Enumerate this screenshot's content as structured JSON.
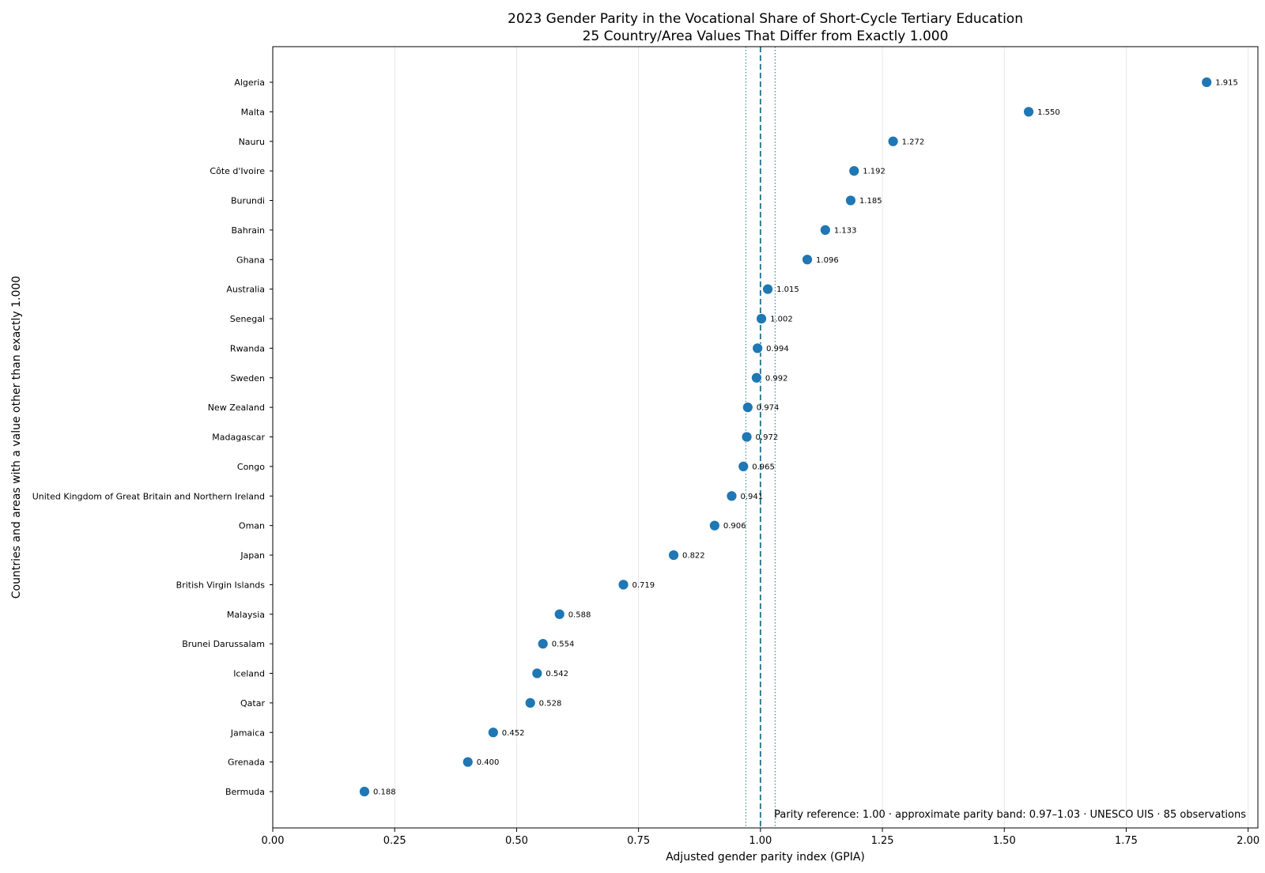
{
  "chart_data": {
    "type": "scatter",
    "title": "2023 Gender Parity in the Vocational Share of Short-Cycle Tertiary Education",
    "subtitle": "25 Country/Area Values That Differ from Exactly 1.000",
    "xlabel": "Adjusted gender parity index (GPIA)",
    "ylabel": "Countries and areas with a value other than exactly 1.000",
    "xlim": [
      0.0,
      2.02
    ],
    "xticks": [
      "0.00",
      "0.25",
      "0.50",
      "0.75",
      "1.00",
      "1.25",
      "1.50",
      "1.75",
      "2.00"
    ],
    "xtick_values": [
      0.0,
      0.25,
      0.5,
      0.75,
      1.0,
      1.25,
      1.5,
      1.75,
      2.0
    ],
    "grid": "vertical",
    "parity_reference": 1.0,
    "parity_band": [
      0.97,
      1.03
    ],
    "annotation": "Parity reference: 1.00 · approximate parity band: 0.97–1.03 · UNESCO UIS · 85 observations",
    "marker_color": "#1f77b4",
    "reference_line_color": "#1f6f8b",
    "points": [
      {
        "label": "Algeria",
        "value": 1.915,
        "value_label": "1.915"
      },
      {
        "label": "Malta",
        "value": 1.55,
        "value_label": "1.550"
      },
      {
        "label": "Nauru",
        "value": 1.272,
        "value_label": "1.272"
      },
      {
        "label": "Côte d'Ivoire",
        "value": 1.192,
        "value_label": "1.192"
      },
      {
        "label": "Burundi",
        "value": 1.185,
        "value_label": "1.185"
      },
      {
        "label": "Bahrain",
        "value": 1.133,
        "value_label": "1.133"
      },
      {
        "label": "Ghana",
        "value": 1.096,
        "value_label": "1.096"
      },
      {
        "label": "Australia",
        "value": 1.015,
        "value_label": "1.015"
      },
      {
        "label": "Senegal",
        "value": 1.002,
        "value_label": "1.002"
      },
      {
        "label": "Rwanda",
        "value": 0.994,
        "value_label": "0.994"
      },
      {
        "label": "Sweden",
        "value": 0.992,
        "value_label": "0.992"
      },
      {
        "label": "New Zealand",
        "value": 0.974,
        "value_label": "0.974"
      },
      {
        "label": "Madagascar",
        "value": 0.972,
        "value_label": "0.972"
      },
      {
        "label": "Congo",
        "value": 0.965,
        "value_label": "0.965"
      },
      {
        "label": "United Kingdom of Great Britain and Northern Ireland",
        "value": 0.941,
        "value_label": "0.941"
      },
      {
        "label": "Oman",
        "value": 0.906,
        "value_label": "0.906"
      },
      {
        "label": "Japan",
        "value": 0.822,
        "value_label": "0.822"
      },
      {
        "label": "British Virgin Islands",
        "value": 0.719,
        "value_label": "0.719"
      },
      {
        "label": "Malaysia",
        "value": 0.588,
        "value_label": "0.588"
      },
      {
        "label": "Brunei Darussalam",
        "value": 0.554,
        "value_label": "0.554"
      },
      {
        "label": "Iceland",
        "value": 0.542,
        "value_label": "0.542"
      },
      {
        "label": "Qatar",
        "value": 0.528,
        "value_label": "0.528"
      },
      {
        "label": "Jamaica",
        "value": 0.452,
        "value_label": "0.452"
      },
      {
        "label": "Grenada",
        "value": 0.4,
        "value_label": "0.400"
      },
      {
        "label": "Bermuda",
        "value": 0.188,
        "value_label": "0.188"
      }
    ]
  }
}
